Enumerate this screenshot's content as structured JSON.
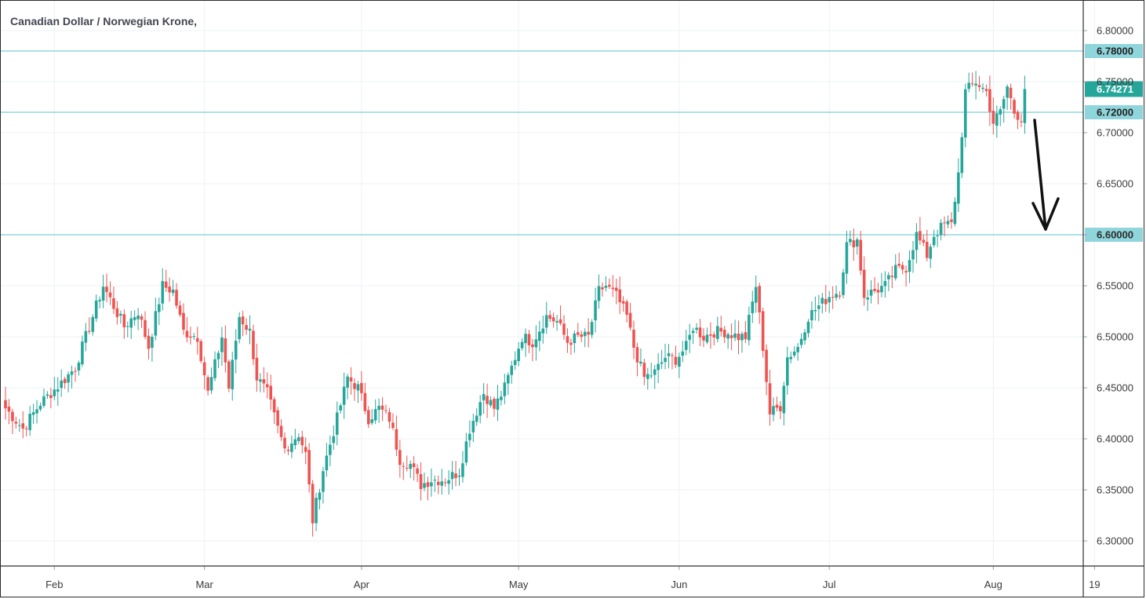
{
  "chart_data": {
    "type": "candlestick",
    "title": "Canadian Dollar / Norwegian Krone,",
    "ylim": [
      6.27,
      6.82
    ],
    "y_ticks": [
      "6.80000",
      "6.75000",
      "6.70000",
      "6.65000",
      "6.60000",
      "6.55000",
      "6.50000",
      "6.45000",
      "6.40000",
      "6.35000",
      "6.30000"
    ],
    "x_ticks": [
      {
        "label": "Feb",
        "index": 14
      },
      {
        "label": "Mar",
        "index": 57
      },
      {
        "label": "Apr",
        "index": 102
      },
      {
        "label": "May",
        "index": 147
      },
      {
        "label": "Jun",
        "index": 193
      },
      {
        "label": "Jul",
        "index": 236
      },
      {
        "label": "Aug",
        "index": 283
      },
      {
        "label": "19",
        "index": 312
      }
    ],
    "grid": true,
    "horizontal_levels": [
      {
        "value": 6.78,
        "label": "6.78000"
      },
      {
        "value": 6.72,
        "label": "6.72000"
      },
      {
        "value": 6.6,
        "label": "6.60000"
      }
    ],
    "last_price": {
      "value": 6.74271,
      "label": "6.74271"
    },
    "annotation": "hand-drawn downward arrow",
    "ohlc_keypoints": [
      [
        0,
        6.43
      ],
      [
        5,
        6.41
      ],
      [
        10,
        6.435
      ],
      [
        16,
        6.455
      ],
      [
        20,
        6.47
      ],
      [
        24,
        6.51
      ],
      [
        28,
        6.55
      ],
      [
        31,
        6.53
      ],
      [
        34,
        6.51
      ],
      [
        38,
        6.525
      ],
      [
        41,
        6.49
      ],
      [
        45,
        6.55
      ],
      [
        48,
        6.545
      ],
      [
        51,
        6.505
      ],
      [
        55,
        6.5
      ],
      [
        58,
        6.445
      ],
      [
        62,
        6.5
      ],
      [
        64,
        6.45
      ],
      [
        67,
        6.52
      ],
      [
        70,
        6.505
      ],
      [
        72,
        6.46
      ],
      [
        75,
        6.445
      ],
      [
        78,
        6.41
      ],
      [
        80,
        6.39
      ],
      [
        84,
        6.405
      ],
      [
        86,
        6.385
      ],
      [
        88,
        6.32
      ],
      [
        91,
        6.37
      ],
      [
        95,
        6.42
      ],
      [
        98,
        6.46
      ],
      [
        101,
        6.45
      ],
      [
        104,
        6.42
      ],
      [
        107,
        6.43
      ],
      [
        110,
        6.42
      ],
      [
        113,
        6.38
      ],
      [
        116,
        6.375
      ],
      [
        119,
        6.355
      ],
      [
        122,
        6.36
      ],
      [
        126,
        6.36
      ],
      [
        130,
        6.368
      ],
      [
        133,
        6.41
      ],
      [
        137,
        6.445
      ],
      [
        140,
        6.43
      ],
      [
        143,
        6.45
      ],
      [
        146,
        6.48
      ],
      [
        148,
        6.5
      ],
      [
        151,
        6.495
      ],
      [
        155,
        6.52
      ],
      [
        158,
        6.515
      ],
      [
        161,
        6.495
      ],
      [
        164,
        6.5
      ],
      [
        167,
        6.5
      ],
      [
        170,
        6.545
      ],
      [
        172,
        6.55
      ],
      [
        175,
        6.54
      ],
      [
        178,
        6.52
      ],
      [
        180,
        6.49
      ],
      [
        183,
        6.46
      ],
      [
        186,
        6.465
      ],
      [
        189,
        6.48
      ],
      [
        192,
        6.478
      ],
      [
        195,
        6.49
      ],
      [
        197,
        6.51
      ],
      [
        200,
        6.5
      ],
      [
        203,
        6.505
      ],
      [
        206,
        6.505
      ],
      [
        210,
        6.5
      ],
      [
        212,
        6.5
      ],
      [
        215,
        6.55
      ],
      [
        217,
        6.49
      ],
      [
        219,
        6.425
      ],
      [
        222,
        6.432
      ],
      [
        224,
        6.48
      ],
      [
        227,
        6.49
      ],
      [
        230,
        6.52
      ],
      [
        233,
        6.53
      ],
      [
        236,
        6.54
      ],
      [
        239,
        6.545
      ],
      [
        241,
        6.59
      ],
      [
        244,
        6.595
      ],
      [
        246,
        6.54
      ],
      [
        249,
        6.545
      ],
      [
        252,
        6.55
      ],
      [
        255,
        6.565
      ],
      [
        258,
        6.568
      ],
      [
        261,
        6.6
      ],
      [
        264,
        6.58
      ],
      [
        266,
        6.6
      ],
      [
        269,
        6.61
      ],
      [
        271,
        6.61
      ],
      [
        273,
        6.66
      ],
      [
        275,
        6.74
      ],
      [
        278,
        6.75
      ],
      [
        281,
        6.74
      ],
      [
        283,
        6.71
      ],
      [
        285,
        6.72
      ],
      [
        287,
        6.745
      ],
      [
        289,
        6.72
      ],
      [
        291,
        6.715
      ],
      [
        292,
        6.742
      ]
    ]
  }
}
